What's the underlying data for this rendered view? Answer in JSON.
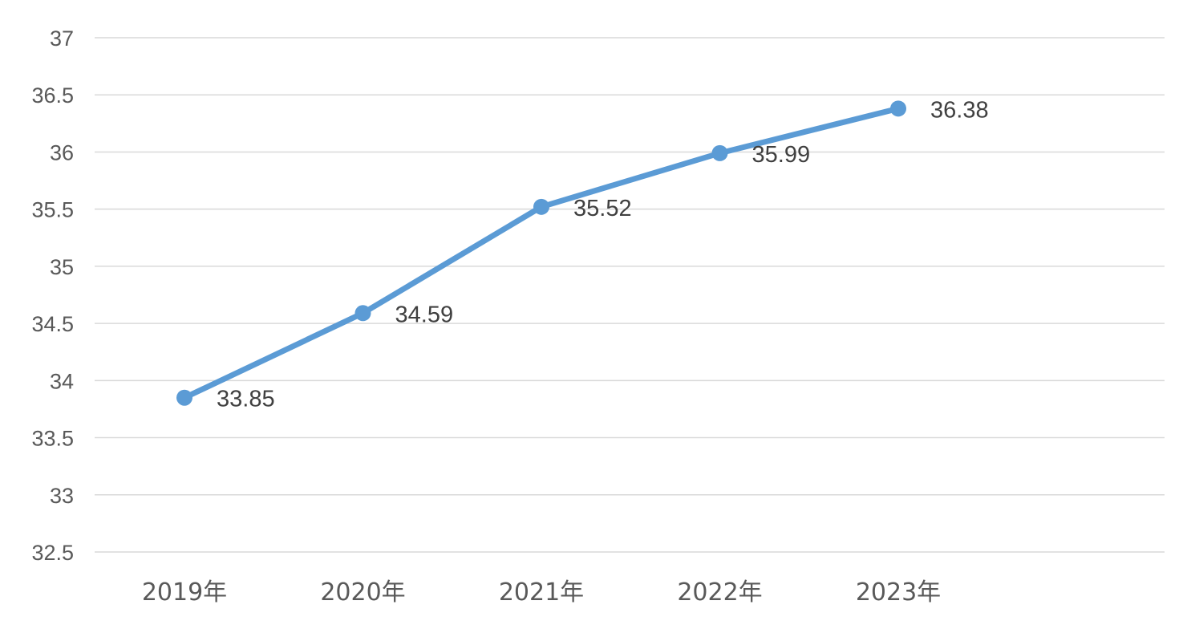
{
  "chart_data": {
    "type": "line",
    "categories": [
      "2019年",
      "2020年",
      "2021年",
      "2022年",
      "2023年"
    ],
    "series": [
      {
        "values": [
          33.85,
          34.59,
          35.52,
          35.99,
          36.38
        ],
        "color": "#5b9bd5"
      }
    ],
    "data_labels": [
      "33.85",
      "34.59",
      "35.52",
      "35.99",
      "36.38"
    ],
    "ylim": [
      32.5,
      37
    ],
    "yticks": [
      32.5,
      33,
      33.5,
      34,
      34.5,
      35,
      35.5,
      36,
      36.5,
      37
    ],
    "ytick_labels": [
      "32.5",
      "33",
      "33.5",
      "34",
      "34.5",
      "35",
      "35.5",
      "36",
      "36.5",
      "37"
    ],
    "grid": true,
    "legend": "none",
    "title": "",
    "xlabel": "",
    "ylabel": ""
  }
}
